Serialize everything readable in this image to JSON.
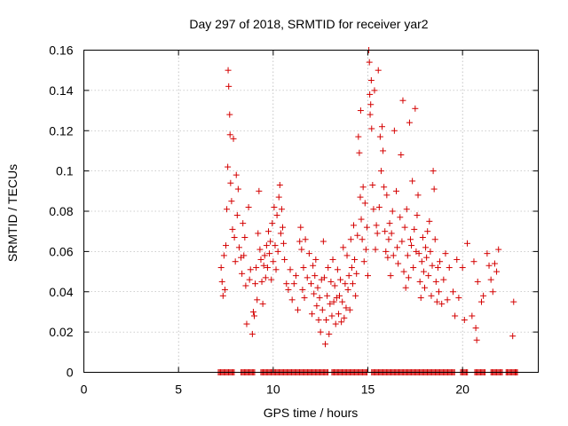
{
  "chart_data": {
    "type": "scatter",
    "title": "Day 297 of 2018, SRMTID for receiver yar2",
    "xlabel": "GPS time / hours",
    "ylabel": "SRMTID / TECUs",
    "xlim": [
      0,
      24
    ],
    "ylim": [
      0,
      0.16
    ],
    "x_ticks": [
      0,
      5,
      10,
      15,
      20
    ],
    "x_tick_labels": [
      "0",
      "5",
      "10",
      "15",
      "20"
    ],
    "y_ticks": [
      0,
      0.02,
      0.04,
      0.06,
      0.08,
      0.1,
      0.12,
      0.14,
      0.16
    ],
    "y_tick_labels": [
      "0",
      "0.02",
      "0.04",
      "0.06",
      "0.08",
      "0.1",
      "0.12",
      "0.14",
      "0.16"
    ],
    "grid": true,
    "marker": "+",
    "color": "#d40000",
    "series": [
      {
        "name": "SRMTID",
        "points": [
          [
            7.25,
            0.052
          ],
          [
            7.3,
            0.045
          ],
          [
            7.35,
            0.038
          ],
          [
            7.4,
            0.058
          ],
          [
            7.45,
            0.041
          ],
          [
            7.5,
            0.063
          ],
          [
            7.55,
            0.081
          ],
          [
            7.6,
            0.102
          ],
          [
            7.62,
            0.15
          ],
          [
            7.65,
            0.142
          ],
          [
            7.7,
            0.128
          ],
          [
            7.72,
            0.118
          ],
          [
            7.75,
            0.094
          ],
          [
            7.8,
            0.085
          ],
          [
            7.85,
            0.071
          ],
          [
            7.9,
            0.116
          ],
          [
            7.95,
            0.067
          ],
          [
            8.0,
            0.055
          ],
          [
            8.05,
            0.098
          ],
          [
            8.1,
            0.078
          ],
          [
            8.15,
            0.091
          ],
          [
            8.2,
            0.062
          ],
          [
            8.3,
            0.057
          ],
          [
            8.35,
            0.049
          ],
          [
            8.4,
            0.074
          ],
          [
            8.45,
            0.058
          ],
          [
            8.5,
            0.067
          ],
          [
            8.55,
            0.043
          ],
          [
            8.6,
            0.024
          ],
          [
            8.7,
            0.082
          ],
          [
            8.75,
            0.046
          ],
          [
            8.8,
            0.051
          ],
          [
            8.9,
            0.019
          ],
          [
            8.95,
            0.03
          ],
          [
            9.0,
            0.028
          ],
          [
            9.05,
            0.044
          ],
          [
            9.1,
            0.052
          ],
          [
            9.15,
            0.036
          ],
          [
            9.2,
            0.069
          ],
          [
            9.25,
            0.09
          ],
          [
            9.3,
            0.061
          ],
          [
            9.35,
            0.056
          ],
          [
            9.4,
            0.045
          ],
          [
            9.45,
            0.034
          ],
          [
            9.5,
            0.053
          ],
          [
            9.55,
            0.058
          ],
          [
            9.6,
            0.047
          ],
          [
            9.65,
            0.063
          ],
          [
            9.7,
            0.052
          ],
          [
            9.75,
            0.07
          ],
          [
            9.8,
            0.059
          ],
          [
            9.85,
            0.065
          ],
          [
            9.9,
            0.046
          ],
          [
            9.95,
            0.074
          ],
          [
            10.0,
            0.055
          ],
          [
            10.05,
            0.082
          ],
          [
            10.1,
            0.063
          ],
          [
            10.15,
            0.051
          ],
          [
            10.2,
            0.078
          ],
          [
            10.25,
            0.06
          ],
          [
            10.3,
            0.087
          ],
          [
            10.35,
            0.093
          ],
          [
            10.4,
            0.069
          ],
          [
            10.45,
            0.081
          ],
          [
            10.5,
            0.072
          ],
          [
            10.55,
            0.064
          ],
          [
            10.6,
            0.056
          ],
          [
            10.7,
            0.044
          ],
          [
            10.8,
            0.041
          ],
          [
            10.9,
            0.051
          ],
          [
            11.0,
            0.036
          ],
          [
            11.1,
            0.044
          ],
          [
            11.2,
            0.048
          ],
          [
            11.3,
            0.031
          ],
          [
            11.4,
            0.065
          ],
          [
            11.45,
            0.072
          ],
          [
            11.5,
            0.061
          ],
          [
            11.55,
            0.041
          ],
          [
            11.6,
            0.052
          ],
          [
            11.65,
            0.037
          ],
          [
            11.7,
            0.066
          ],
          [
            11.8,
            0.047
          ],
          [
            11.9,
            0.059
          ],
          [
            12.0,
            0.044
          ],
          [
            12.05,
            0.029
          ],
          [
            12.1,
            0.053
          ],
          [
            12.15,
            0.039
          ],
          [
            12.2,
            0.048
          ],
          [
            12.25,
            0.056
          ],
          [
            12.3,
            0.033
          ],
          [
            12.35,
            0.042
          ],
          [
            12.4,
            0.026
          ],
          [
            12.45,
            0.037
          ],
          [
            12.5,
            0.02
          ],
          [
            12.55,
            0.046
          ],
          [
            12.6,
            0.031
          ],
          [
            12.65,
            0.065
          ],
          [
            12.7,
            0.047
          ],
          [
            12.75,
            0.014
          ],
          [
            12.8,
            0.026
          ],
          [
            12.85,
            0.038
          ],
          [
            12.9,
            0.052
          ],
          [
            12.95,
            0.019
          ],
          [
            13.0,
            0.034
          ],
          [
            13.05,
            0.045
          ],
          [
            13.1,
            0.028
          ],
          [
            13.15,
            0.056
          ],
          [
            13.2,
            0.035
          ],
          [
            13.25,
            0.043
          ],
          [
            13.3,
            0.024
          ],
          [
            13.35,
            0.037
          ],
          [
            13.4,
            0.051
          ],
          [
            13.45,
            0.029
          ],
          [
            13.5,
            0.038
          ],
          [
            13.55,
            0.046
          ],
          [
            13.6,
            0.025
          ],
          [
            13.65,
            0.035
          ],
          [
            13.7,
            0.062
          ],
          [
            13.75,
            0.027
          ],
          [
            13.8,
            0.044
          ],
          [
            13.85,
            0.032
          ],
          [
            13.9,
            0.058
          ],
          [
            13.95,
            0.041
          ],
          [
            14.0,
            0.048
          ],
          [
            14.05,
            0.031
          ],
          [
            14.1,
            0.066
          ],
          [
            14.15,
            0.052
          ],
          [
            14.2,
            0.044
          ],
          [
            14.25,
            0.073
          ],
          [
            14.3,
            0.056
          ],
          [
            14.35,
            0.038
          ],
          [
            14.4,
            0.049
          ],
          [
            14.45,
            0.068
          ],
          [
            14.5,
            0.117
          ],
          [
            14.55,
            0.109
          ],
          [
            14.6,
            0.087
          ],
          [
            14.62,
            0.13
          ],
          [
            14.65,
            0.076
          ],
          [
            14.7,
            0.066
          ],
          [
            14.75,
            0.092
          ],
          [
            14.8,
            0.055
          ],
          [
            14.85,
            0.084
          ],
          [
            14.9,
            0.061
          ],
          [
            14.95,
            0.072
          ],
          [
            15.0,
            0.048
          ],
          [
            15.05,
            0.16
          ],
          [
            15.08,
            0.154
          ],
          [
            15.1,
            0.138
          ],
          [
            15.12,
            0.128
          ],
          [
            15.15,
            0.133
          ],
          [
            15.18,
            0.145
          ],
          [
            15.2,
            0.121
          ],
          [
            15.25,
            0.093
          ],
          [
            15.3,
            0.081
          ],
          [
            15.35,
            0.14
          ],
          [
            15.4,
            0.061
          ],
          [
            15.45,
            0.073
          ],
          [
            15.5,
            0.069
          ],
          [
            15.55,
            0.15
          ],
          [
            15.6,
            0.082
          ],
          [
            15.65,
            0.117
          ],
          [
            15.7,
            0.1
          ],
          [
            15.75,
            0.122
          ],
          [
            15.8,
            0.11
          ],
          [
            15.85,
            0.092
          ],
          [
            15.9,
            0.07
          ],
          [
            15.95,
            0.06
          ],
          [
            16.0,
            0.088
          ],
          [
            16.05,
            0.057
          ],
          [
            16.1,
            0.066
          ],
          [
            16.15,
            0.074
          ],
          [
            16.2,
            0.048
          ],
          [
            16.25,
            0.069
          ],
          [
            16.3,
            0.08
          ],
          [
            16.35,
            0.058
          ],
          [
            16.4,
            0.12
          ],
          [
            16.5,
            0.09
          ],
          [
            16.55,
            0.062
          ],
          [
            16.6,
            0.054
          ],
          [
            16.7,
            0.077
          ],
          [
            16.75,
            0.108
          ],
          [
            16.8,
            0.065
          ],
          [
            16.85,
            0.135
          ],
          [
            16.9,
            0.05
          ],
          [
            16.95,
            0.072
          ],
          [
            17.0,
            0.042
          ],
          [
            17.05,
            0.081
          ],
          [
            17.1,
            0.058
          ],
          [
            17.15,
            0.047
          ],
          [
            17.2,
            0.124
          ],
          [
            17.25,
            0.066
          ],
          [
            17.3,
            0.063
          ],
          [
            17.35,
            0.095
          ],
          [
            17.4,
            0.052
          ],
          [
            17.45,
            0.071
          ],
          [
            17.5,
            0.131
          ],
          [
            17.55,
            0.06
          ],
          [
            17.6,
            0.078
          ],
          [
            17.65,
            0.088
          ],
          [
            17.7,
            0.059
          ],
          [
            17.75,
            0.045
          ],
          [
            17.8,
            0.037
          ],
          [
            17.85,
            0.055
          ],
          [
            17.9,
            0.067
          ],
          [
            17.95,
            0.05
          ],
          [
            18.0,
            0.042
          ],
          [
            18.05,
            0.062
          ],
          [
            18.1,
            0.057
          ],
          [
            18.15,
            0.07
          ],
          [
            18.2,
            0.048
          ],
          [
            18.25,
            0.075
          ],
          [
            18.3,
            0.06
          ],
          [
            18.35,
            0.038
          ],
          [
            18.4,
            0.053
          ],
          [
            18.45,
            0.1
          ],
          [
            18.5,
            0.091
          ],
          [
            18.55,
            0.066
          ],
          [
            18.6,
            0.045
          ],
          [
            18.65,
            0.035
          ],
          [
            18.7,
            0.052
          ],
          [
            18.75,
            0.04
          ],
          [
            18.8,
            0.055
          ],
          [
            18.9,
            0.034
          ],
          [
            19.0,
            0.046
          ],
          [
            19.1,
            0.059
          ],
          [
            19.2,
            0.036
          ],
          [
            19.3,
            0.052
          ],
          [
            19.5,
            0.04
          ],
          [
            19.6,
            0.028
          ],
          [
            19.7,
            0.056
          ],
          [
            19.8,
            0.037
          ],
          [
            20.0,
            0.052
          ],
          [
            20.1,
            0.026
          ],
          [
            20.25,
            0.064
          ],
          [
            20.5,
            0.028
          ],
          [
            20.6,
            0.055
          ],
          [
            20.7,
            0.022
          ],
          [
            20.75,
            0.016
          ],
          [
            20.8,
            0.045
          ],
          [
            21.0,
            0.035
          ],
          [
            21.1,
            0.038
          ],
          [
            21.3,
            0.059
          ],
          [
            21.4,
            0.053
          ],
          [
            21.5,
            0.046
          ],
          [
            21.6,
            0.04
          ],
          [
            21.7,
            0.054
          ],
          [
            21.8,
            0.05
          ],
          [
            21.9,
            0.061
          ],
          [
            22.65,
            0.018
          ],
          [
            22.7,
            0.035
          ],
          [
            22.8,
            0.0
          ]
        ]
      }
    ],
    "zero_band_ranges": [
      [
        7.1,
        7.95
      ],
      [
        8.3,
        9.05
      ],
      [
        9.35,
        12.95
      ],
      [
        13.1,
        15.0
      ],
      [
        15.2,
        19.6
      ],
      [
        19.9,
        20.3
      ],
      [
        20.65,
        21.2
      ],
      [
        21.5,
        22.1
      ],
      [
        22.3,
        22.95
      ]
    ]
  }
}
